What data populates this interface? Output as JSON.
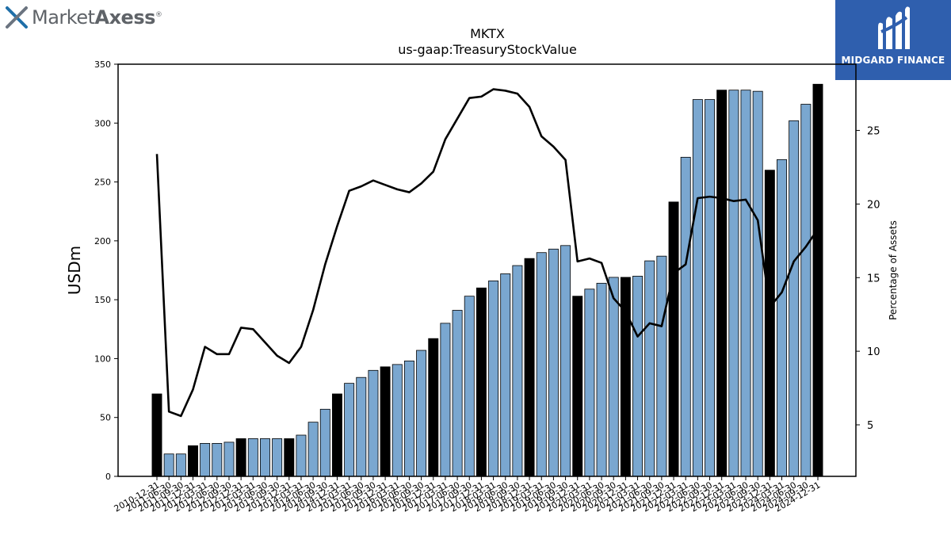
{
  "header": {
    "brand_regular": "Market",
    "brand_bold": "Axess",
    "brand_mark": "®",
    "badge_text": "MIDGARD FINANCE",
    "logo_icon": "marketaxess-x-icon",
    "badge_icon": "midgard-m-icon"
  },
  "colors": {
    "bar_light": "#7aa7d0",
    "bar_dark": "#000000",
    "line": "#000000",
    "badge_bg": "#2f5fae"
  },
  "chart_data": {
    "type": "bar",
    "title": "MKTX",
    "subtitle": "us-gaap:TreasuryStockValue",
    "ylabel": "USDm",
    "ylabel_right": "Percentage of Assets",
    "ylim": [
      0,
      350
    ],
    "ylim_right": [
      1.5,
      29.5
    ],
    "yticks": [
      0,
      50,
      100,
      150,
      200,
      250,
      300,
      350
    ],
    "yticks_right": [
      5,
      10,
      15,
      20,
      25
    ],
    "legend": "none",
    "grid": false,
    "categories": [
      "2010-12-31",
      "2011-06-30",
      "2011-09-30",
      "2011-12-31",
      "2012-03-31",
      "2012-06-30",
      "2012-09-30",
      "2012-12-31",
      "2013-03-31",
      "2013-06-30",
      "2013-09-30",
      "2013-12-31",
      "2014-03-31",
      "2014-06-30",
      "2014-09-30",
      "2014-12-31",
      "2015-03-31",
      "2015-06-30",
      "2015-09-30",
      "2015-12-31",
      "2016-03-31",
      "2016-06-30",
      "2016-09-30",
      "2016-12-31",
      "2017-03-31",
      "2017-06-30",
      "2017-09-30",
      "2017-12-31",
      "2018-03-31",
      "2018-06-30",
      "2018-09-30",
      "2018-12-31",
      "2019-03-31",
      "2019-06-30",
      "2019-09-30",
      "2019-12-31",
      "2020-03-31",
      "2020-06-30",
      "2020-09-30",
      "2020-12-31",
      "2021-03-31",
      "2021-06-30",
      "2021-09-30",
      "2021-12-31",
      "2022-03-31",
      "2022-06-30",
      "2022-09-30",
      "2022-12-31",
      "2023-03-31",
      "2023-06-30",
      "2023-09-30",
      "2023-12-31",
      "2024-03-31",
      "2024-06-30",
      "2024-09-30",
      "2024-12-31"
    ],
    "tick_labels": [
      "2010-12-31",
      "2011-06-30",
      "2011-09-30",
      "2011-12-31",
      "2012-03-31",
      "2012-06-30",
      "2012-09-30",
      "2012-12-31",
      "2013-03-31",
      "2013-06-30",
      "2013-09-30",
      "2013-12-31",
      "2014-03-31",
      "2014-06-30",
      "2014-09-30",
      "2014-12-31",
      "2015-03-31",
      "2015-06-30",
      "2015-09-30",
      "2015-12-31",
      "2016-03-31",
      "2016-06-30",
      "2016-09-30",
      "2016-12-31",
      "2017-03-31",
      "2017-06-30",
      "2017-09-30",
      "2017-12-31",
      "2018-03-31",
      "2018-06-30",
      "2018-09-30",
      "2018-12-31",
      "2019-03-31",
      "2019-06-30",
      "2019-09-30",
      "2019-12-31",
      "2020-03-31",
      "2020-06-30",
      "2020-09-30",
      "2020-12-31",
      "2021-03-31",
      "2021-06-30",
      "2021-09-30",
      "2021-12-31",
      "2022-03-31",
      "2022-06-30",
      "2022-09-30",
      "2022-12-31",
      "2023-03-31",
      "2023-06-30",
      "2023-09-30",
      "2023-12-31",
      "2024-03-31",
      "2024-06-30",
      "2024-09-30",
      "2024-12-31"
    ],
    "values": [
      70,
      19,
      19,
      26,
      28,
      28,
      29,
      32,
      32,
      32,
      32,
      32,
      35,
      46,
      57,
      70,
      79,
      84,
      90,
      93,
      95,
      98,
      107,
      117,
      130,
      141,
      153,
      160,
      166,
      172,
      179,
      185,
      190,
      193,
      196,
      153,
      159,
      164,
      169,
      169,
      170,
      183,
      187,
      233,
      271,
      320,
      320,
      328,
      328,
      328,
      327,
      260,
      269,
      302,
      316,
      333
    ],
    "year_end": [
      true,
      false,
      false,
      true,
      false,
      false,
      false,
      true,
      false,
      false,
      false,
      true,
      false,
      false,
      false,
      true,
      false,
      false,
      false,
      true,
      false,
      false,
      false,
      true,
      false,
      false,
      false,
      true,
      false,
      false,
      false,
      true,
      false,
      false,
      false,
      true,
      false,
      false,
      false,
      true,
      false,
      false,
      false,
      true,
      false,
      false,
      false,
      true,
      false,
      false,
      false,
      true,
      false,
      false,
      false,
      true
    ],
    "line_series": {
      "axis": "right",
      "values": [
        23.4,
        5.9,
        5.6,
        7.4,
        10.3,
        9.8,
        9.8,
        11.6,
        11.5,
        10.6,
        9.7,
        9.2,
        10.3,
        12.8,
        15.9,
        18.5,
        20.9,
        21.2,
        21.6,
        21.3,
        21.0,
        20.8,
        21.4,
        22.2,
        24.4,
        25.8,
        27.2,
        27.3,
        27.8,
        27.7,
        27.5,
        26.6,
        24.6,
        23.9,
        23.0,
        16.1,
        16.3,
        16.0,
        13.6,
        12.7,
        11.0,
        11.9,
        11.7,
        15.3,
        15.9,
        20.4,
        20.5,
        20.4,
        20.2,
        20.3,
        18.9,
        13.0,
        14.0,
        16.1,
        17.1,
        18.3
      ]
    }
  }
}
